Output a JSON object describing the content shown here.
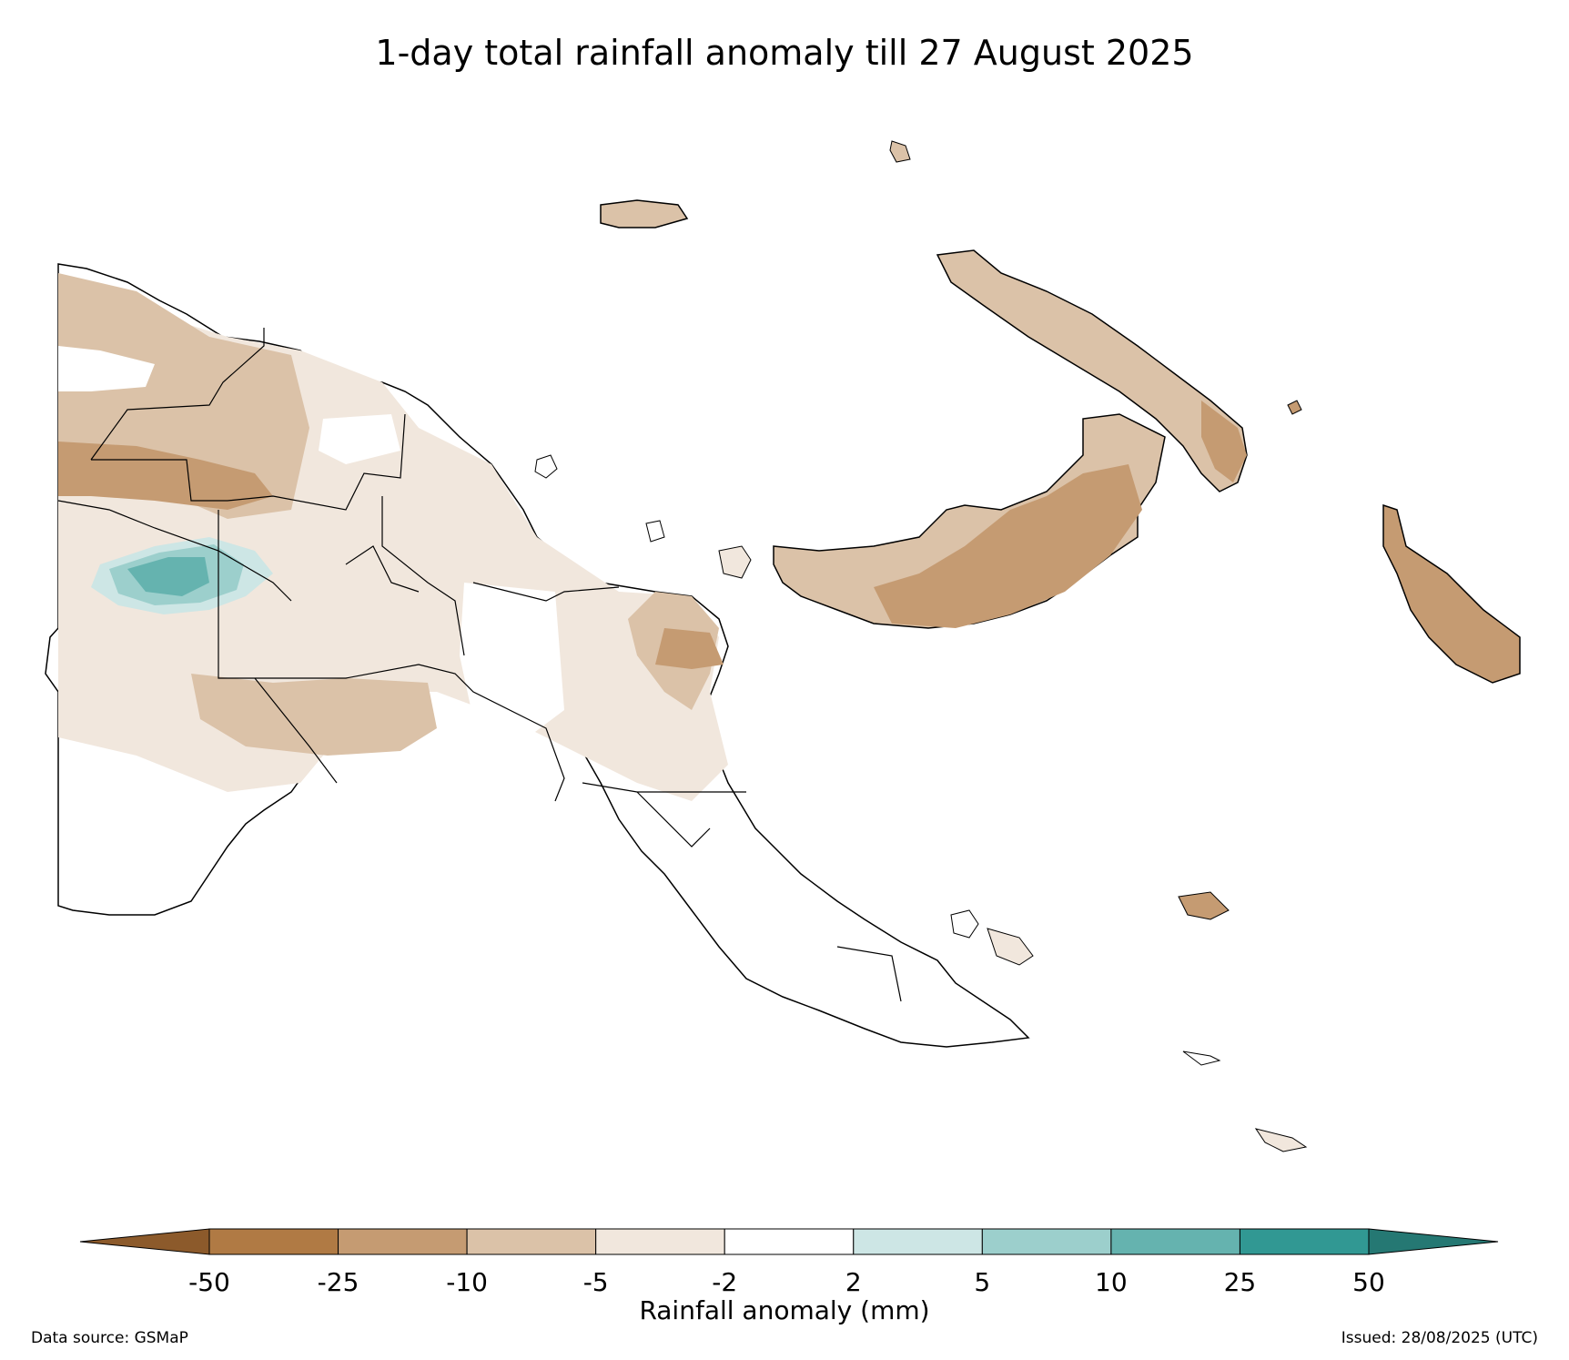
{
  "title": "1-day total rainfall anomaly till 27 August 2025",
  "colorbar": {
    "label": "Rainfall anomaly (mm)",
    "ticks": [
      "-50",
      "-25",
      "-10",
      "-5",
      "-2",
      "2",
      "5",
      "10",
      "25",
      "50"
    ],
    "bins": [
      {
        "from": null,
        "to": -50,
        "color": "#8c5a2b"
      },
      {
        "from": -50,
        "to": -25,
        "color": "#b07a44"
      },
      {
        "from": -25,
        "to": -10,
        "color": "#c59b72"
      },
      {
        "from": -10,
        "to": -5,
        "color": "#dbc2a8"
      },
      {
        "from": -5,
        "to": -2,
        "color": "#f1e7dd"
      },
      {
        "from": -2,
        "to": 2,
        "color": "#ffffff"
      },
      {
        "from": 2,
        "to": 5,
        "color": "#cde6e5"
      },
      {
        "from": 5,
        "to": 10,
        "color": "#9ccfcc"
      },
      {
        "from": 10,
        "to": 25,
        "color": "#65b3af"
      },
      {
        "from": 25,
        "to": 50,
        "color": "#319893"
      },
      {
        "from": 50,
        "to": null,
        "color": "#257873"
      }
    ]
  },
  "footer": {
    "source": "Data source: GSMaP",
    "issued": "Issued: 28/08/2025 (UTC)"
  }
}
